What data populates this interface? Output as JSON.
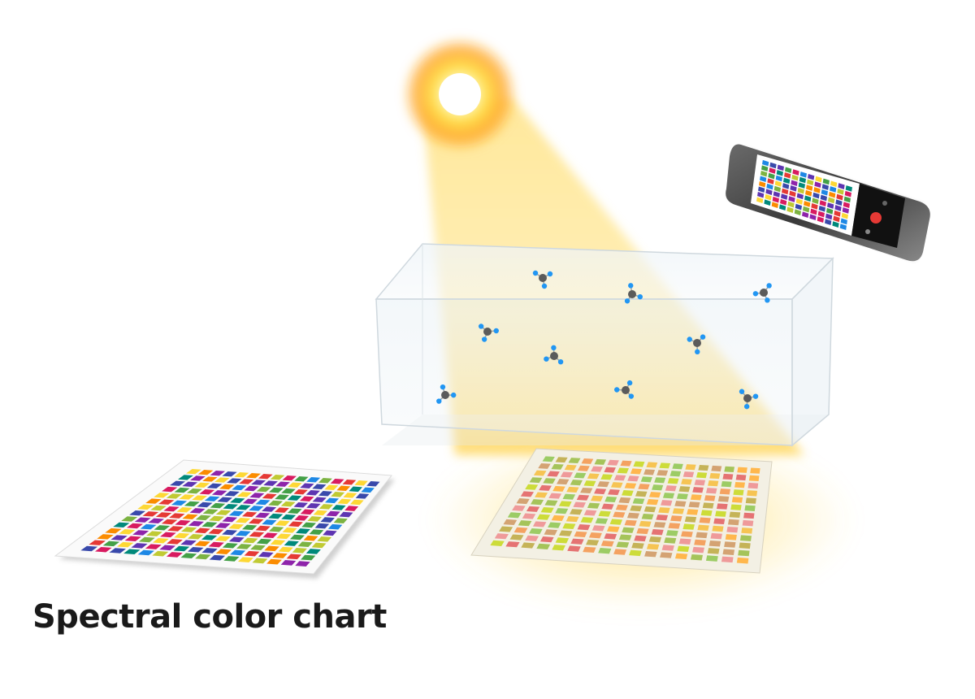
{
  "figure": {
    "caption": "Spectral color chart",
    "elements": {
      "light_source": "sun-light-source",
      "sample_box": "transparent-gas-chamber",
      "molecules": "small-molecule-icons",
      "left_chart": "spectral-color-chart-reference",
      "right_chart": "spectral-color-chart-illuminated",
      "camera": "smartphone-capturing-chart"
    },
    "colors": {
      "beam": "#ffd54a",
      "sun_core": "#ffffff",
      "sun_halo": "#ffa000",
      "chart_reference_palette": [
        "#e53935",
        "#8e24aa",
        "#3949ab",
        "#1e88e5",
        "#43a047",
        "#fdd835",
        "#fb8c00",
        "#d81b60",
        "#00897b",
        "#7cb342",
        "#c0ca33",
        "#5e35b1"
      ],
      "chart_illuminated_palette": [
        "#e57373",
        "#f4a261",
        "#a5c45a",
        "#cddc39",
        "#ffb74d",
        "#d4a373",
        "#9ccc65",
        "#ef9a9a",
        "#f6c453",
        "#c5b358"
      ],
      "molecule_atom": "#5b5b5b",
      "molecule_bond_atom": "#2196f3"
    }
  }
}
